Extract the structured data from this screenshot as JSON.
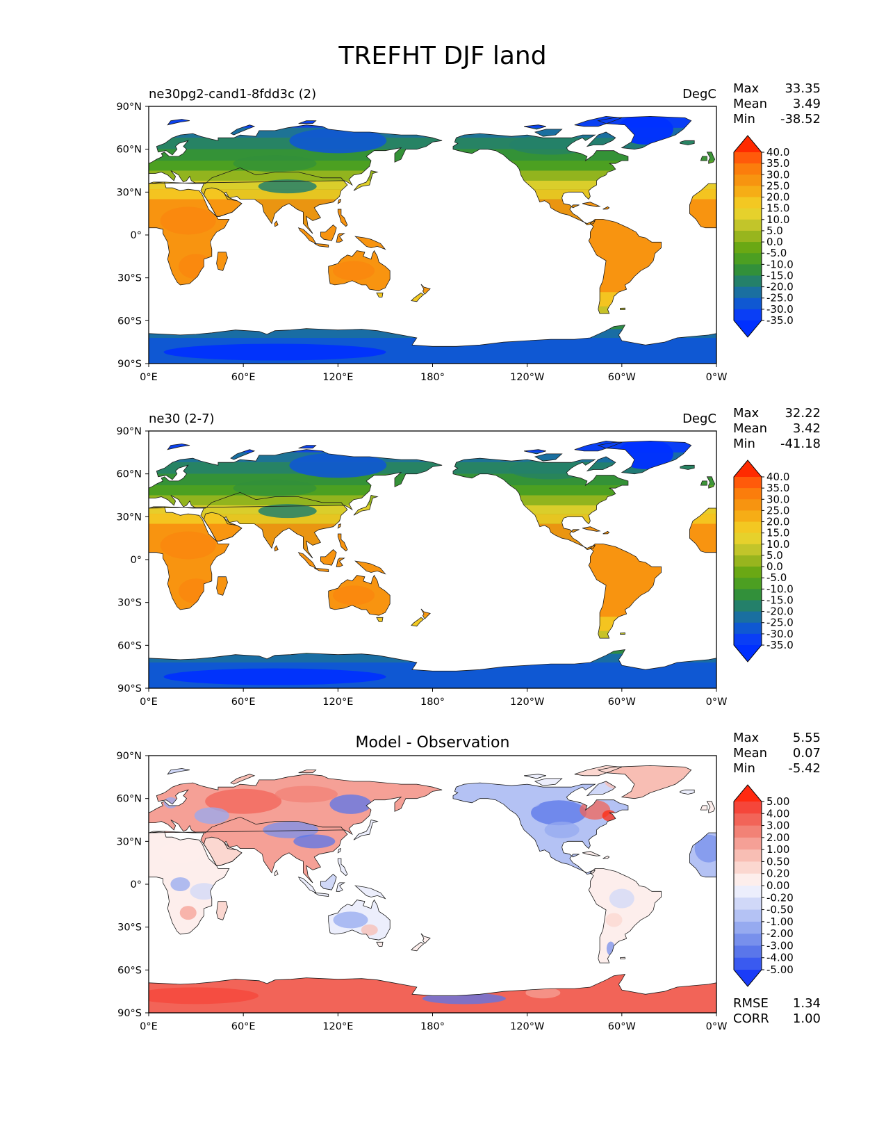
{
  "figure_title": "TREFHT DJF land",
  "panels": [
    {
      "id": "test",
      "left_title": "ne30pg2-cand1-8fdd3c (2)",
      "center_title": "",
      "units": "DegC",
      "stats": {
        "max_label": "Max",
        "max": "33.35",
        "mean_label": "Mean",
        "mean": "3.49",
        "min_label": "Min",
        "min": "-38.52"
      },
      "colorbar": {
        "levels": [
          "40.0",
          "35.0",
          "30.0",
          "25.0",
          "20.0",
          "15.0",
          "10.0",
          "5.0",
          "0.0",
          "-5.0",
          "-10.0",
          "-15.0",
          "-20.0",
          "-25.0",
          "-30.0",
          "-35.0"
        ],
        "colors": [
          "#ff2a00",
          "#ff5a0a",
          "#fb7d0c",
          "#f79410",
          "#f6ad16",
          "#f3c822",
          "#e6d12c",
          "#c2c52a",
          "#98b51e",
          "#6aa814",
          "#4c9f22",
          "#32903a",
          "#24806a",
          "#1a6fa0",
          "#0f58d2",
          "#0a3ef5",
          "#0030ff"
        ],
        "over_color": "#ff2200",
        "under_color": "#0033ff"
      },
      "map": {
        "land_fill": "temperature",
        "antarctica_color": "#0f58d2",
        "greenland_color": "#0a3ef5"
      }
    },
    {
      "id": "reference",
      "left_title": "ne30 (2-7)",
      "center_title": "",
      "units": "DegC",
      "stats": {
        "max_label": "Max",
        "max": "32.22",
        "mean_label": "Mean",
        "mean": "3.42",
        "min_label": "Min",
        "min": "-41.18"
      },
      "colorbar": {
        "levels": [
          "40.0",
          "35.0",
          "30.0",
          "25.0",
          "20.0",
          "15.0",
          "10.0",
          "5.0",
          "0.0",
          "-5.0",
          "-10.0",
          "-15.0",
          "-20.0",
          "-25.0",
          "-30.0",
          "-35.0"
        ],
        "colors": [
          "#ff2a00",
          "#ff5a0a",
          "#fb7d0c",
          "#f79410",
          "#f6ad16",
          "#f3c822",
          "#e6d12c",
          "#c2c52a",
          "#98b51e",
          "#6aa814",
          "#4c9f22",
          "#32903a",
          "#24806a",
          "#1a6fa0",
          "#0f58d2",
          "#0a3ef5",
          "#0030ff"
        ],
        "over_color": "#ff2200",
        "under_color": "#0033ff"
      },
      "map": {
        "land_fill": "temperature",
        "antarctica_color": "#0f58d2",
        "greenland_color": "#0a3ef5"
      }
    },
    {
      "id": "difference",
      "left_title": "",
      "center_title": "Model - Observation",
      "units": "",
      "stats": {
        "max_label": "Max",
        "max": "5.55",
        "mean_label": "Mean",
        "mean": "0.07",
        "min_label": "Min",
        "min": "-5.42"
      },
      "colorbar": {
        "levels": [
          "5.00",
          "4.00",
          "3.00",
          "2.00",
          "1.00",
          "0.50",
          "0.20",
          "0.00",
          "-0.20",
          "-0.50",
          "-1.00",
          "-2.00",
          "-3.00",
          "-4.00",
          "-5.00"
        ],
        "colors": [
          "#ff2a10",
          "#f5463a",
          "#f26458",
          "#f28276",
          "#f5a096",
          "#f8beb4",
          "#fbd7d0",
          "#fdeeec",
          "#eceefc",
          "#d0d8f8",
          "#b4c2f4",
          "#96aaf0",
          "#7890ec",
          "#5a76ea",
          "#3a5af0",
          "#1a3cf8"
        ],
        "over_color": "#ff2200",
        "under_color": "#0033ff"
      },
      "map": {
        "land_fill": "anomaly",
        "antarctica_color": "#f26458",
        "greenland_color": "#f8beb4"
      },
      "metrics": {
        "rmse_label": "RMSE",
        "rmse": "1.34",
        "corr_label": "CORR",
        "corr": "1.00"
      }
    }
  ],
  "axes": {
    "x_ticks": [
      "0°E",
      "60°E",
      "120°E",
      "180°",
      "120°W",
      "60°W",
      "0°W"
    ],
    "y_ticks": [
      "90°N",
      "60°N",
      "30°N",
      "0°",
      "30°S",
      "60°S",
      "90°S"
    ],
    "lon_range": [
      0,
      360
    ],
    "lat_range": [
      -90,
      90
    ]
  },
  "chart_data": {
    "type": "heatmap",
    "title": "TREFHT DJF land",
    "variable": "TREFHT",
    "season": "DJF",
    "region": "land",
    "units": "DegC",
    "panels": [
      {
        "name": "ne30pg2-cand1-8fdd3c (2)",
        "max": 33.35,
        "mean": 3.49,
        "min": -38.52,
        "levels": [
          -35,
          -30,
          -25,
          -20,
          -15,
          -10,
          -5,
          0,
          5,
          10,
          15,
          20,
          25,
          30,
          35,
          40
        ]
      },
      {
        "name": "ne30 (2-7)",
        "max": 32.22,
        "mean": 3.42,
        "min": -41.18,
        "levels": [
          -35,
          -30,
          -25,
          -20,
          -15,
          -10,
          -5,
          0,
          5,
          10,
          15,
          20,
          25,
          30,
          35,
          40
        ]
      },
      {
        "name": "Model - Observation",
        "max": 5.55,
        "mean": 0.07,
        "min": -5.42,
        "levels": [
          -5,
          -4,
          -3,
          -2,
          -1,
          -0.5,
          -0.2,
          0,
          0.2,
          0.5,
          1,
          2,
          3,
          4,
          5
        ],
        "rmse": 1.34,
        "corr": 1.0
      }
    ],
    "xlim": [
      0,
      360
    ],
    "ylim": [
      -90,
      90
    ]
  }
}
